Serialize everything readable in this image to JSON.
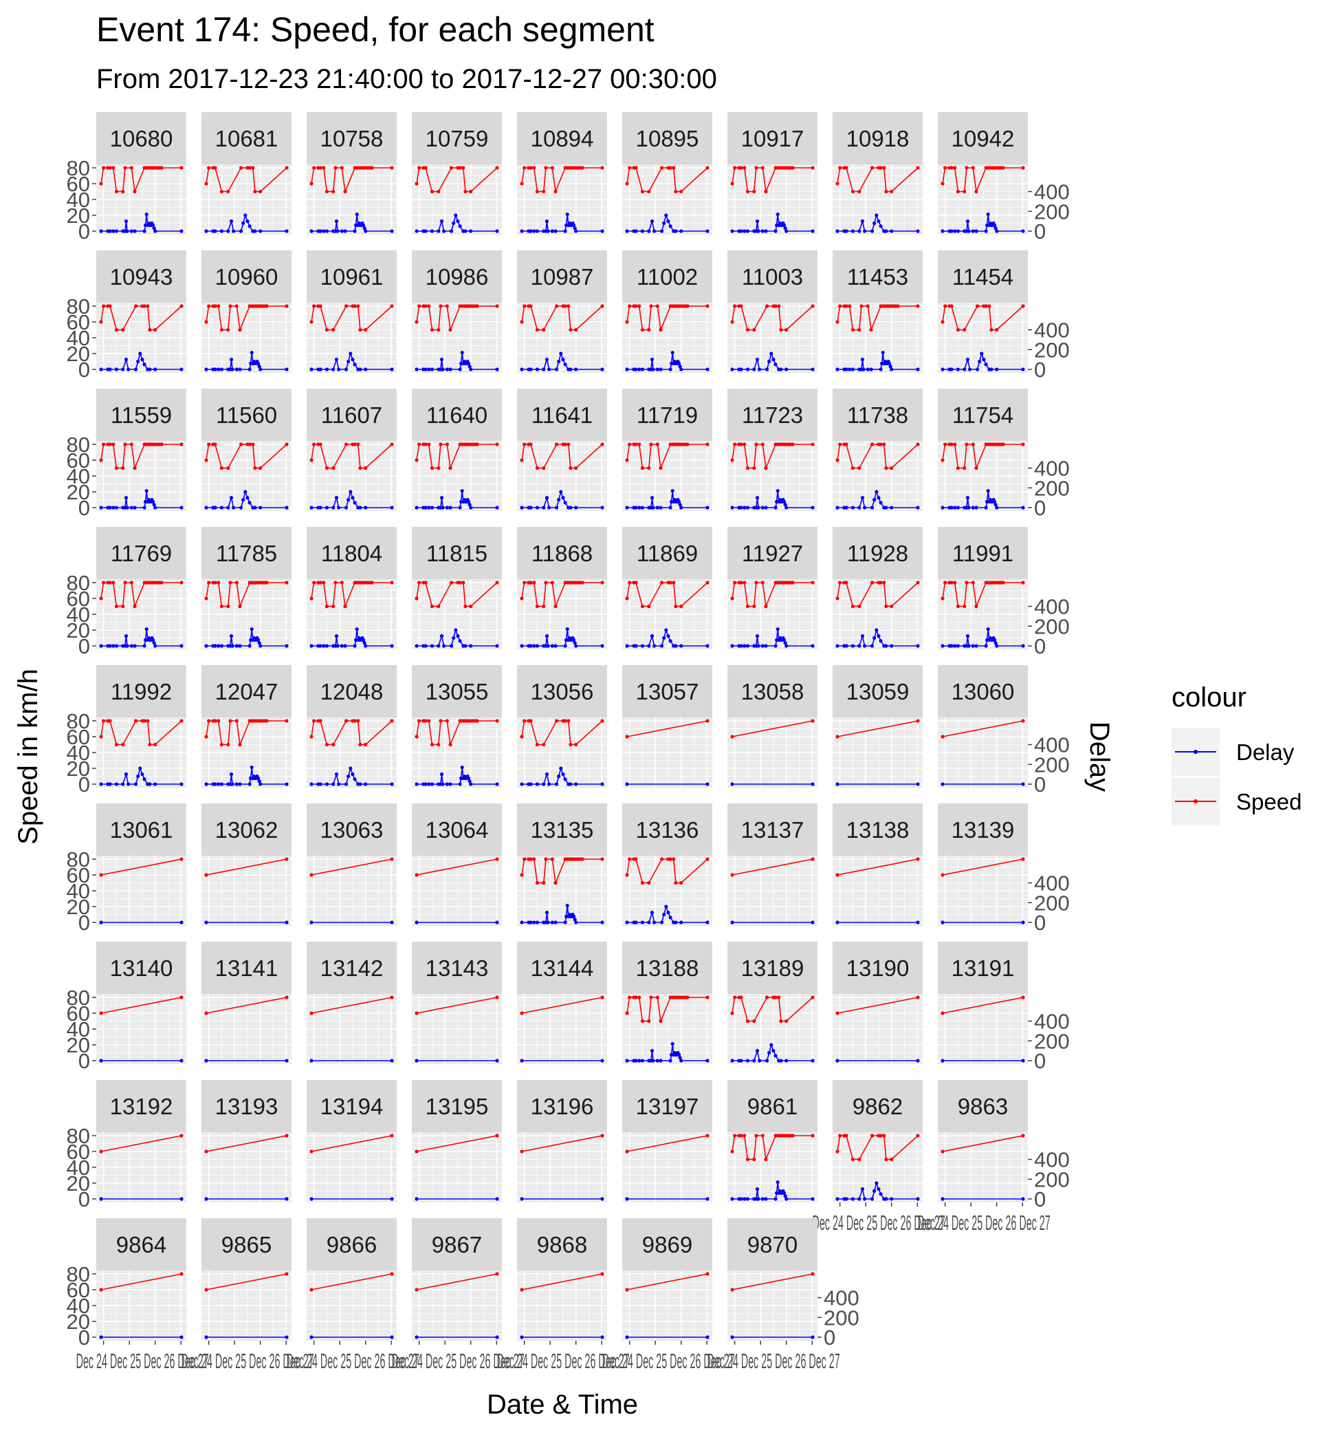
{
  "chart_data": {
    "type": "line",
    "facet": "small-multiples",
    "title": "Event 174: Speed, for each segment",
    "subtitle": "From 2017-12-23 21:40:00 to 2017-12-27 00:30:00",
    "xlabel": "Date & Time",
    "ylabel": "Speed in km/h",
    "y2label": "Delay",
    "legend": {
      "title": "colour",
      "placement": "right",
      "entries": [
        {
          "name": "Delay",
          "color": "#0000ff"
        },
        {
          "name": "Speed",
          "color": "#ff0000"
        }
      ]
    },
    "colors": {
      "Delay": "#0000ff",
      "Speed": "#ff0000",
      "panel_bg": "#ebebeb",
      "strip_bg": "#d9d9d9",
      "grid": "#ffffff"
    },
    "grid": true,
    "ylim": [
      0,
      80
    ],
    "y_ticks": [
      "0",
      "20",
      "40",
      "60",
      "80"
    ],
    "y2lim": [
      0,
      640
    ],
    "y2_ticks": [
      "0",
      "200",
      "400"
    ],
    "x_ticks": [
      "Dec 24",
      "Dec 25",
      "Dec 26",
      "Dec 27"
    ],
    "x_tick_text_shown": "Dec 24 Dec 25 Dec 26 Dec 27",
    "xlim": [
      "2017-12-23 21:40:00",
      "2017-12-27 00:30:00"
    ],
    "profiles": {
      "A": {
        "speed": [
          {
            "x": "2017-12-23 21:40:00",
            "y": 60
          },
          {
            "x": "2017-12-24 00:00:00",
            "y": 80
          },
          {
            "x": "2017-12-24 04:00:00",
            "y": 80
          },
          {
            "x": "2017-12-24 06:00:00",
            "y": 80
          },
          {
            "x": "2017-12-24 09:00:00",
            "y": 80
          },
          {
            "x": "2017-12-24 12:00:00",
            "y": 50
          },
          {
            "x": "2017-12-24 18:00:00",
            "y": 50
          },
          {
            "x": "2017-12-24 20:00:00",
            "y": 80
          },
          {
            "x": "2017-12-25 02:00:00",
            "y": 80
          },
          {
            "x": "2017-12-25 05:00:00",
            "y": 50
          },
          {
            "x": "2017-12-25 14:00:00",
            "y": 80
          },
          {
            "x": "2017-12-25 16:00:00",
            "y": 80
          },
          {
            "x": "2017-12-25 18:00:00",
            "y": 80
          },
          {
            "x": "2017-12-25 20:00:00",
            "y": 80
          },
          {
            "x": "2017-12-25 22:00:00",
            "y": 80
          },
          {
            "x": "2017-12-26 00:00:00",
            "y": 80
          },
          {
            "x": "2017-12-26 02:00:00",
            "y": 80
          },
          {
            "x": "2017-12-26 04:00:00",
            "y": 80
          },
          {
            "x": "2017-12-26 06:00:00",
            "y": 80
          },
          {
            "x": "2017-12-27 00:30:00",
            "y": 80
          }
        ],
        "delay": [
          {
            "x": "2017-12-23 21:40:00",
            "y": 0
          },
          {
            "x": "2017-12-24 04:00:00",
            "y": 0
          },
          {
            "x": "2017-12-24 06:00:00",
            "y": 0
          },
          {
            "x": "2017-12-24 09:00:00",
            "y": 0
          },
          {
            "x": "2017-12-24 12:00:00",
            "y": 0
          },
          {
            "x": "2017-12-24 18:00:00",
            "y": 0
          },
          {
            "x": "2017-12-24 20:00:00",
            "y": 0
          },
          {
            "x": "2017-12-24 21:00:00",
            "y": 100
          },
          {
            "x": "2017-12-24 22:00:00",
            "y": 0
          },
          {
            "x": "2017-12-25 02:00:00",
            "y": 0
          },
          {
            "x": "2017-12-25 05:00:00",
            "y": 0
          },
          {
            "x": "2017-12-25 14:00:00",
            "y": 0
          },
          {
            "x": "2017-12-25 15:00:00",
            "y": 60
          },
          {
            "x": "2017-12-25 16:00:00",
            "y": 170
          },
          {
            "x": "2017-12-25 17:00:00",
            "y": 60
          },
          {
            "x": "2017-12-25 18:00:00",
            "y": 80
          },
          {
            "x": "2017-12-25 19:00:00",
            "y": 60
          },
          {
            "x": "2017-12-25 20:00:00",
            "y": 60
          },
          {
            "x": "2017-12-25 21:00:00",
            "y": 80
          },
          {
            "x": "2017-12-25 22:00:00",
            "y": 60
          },
          {
            "x": "2017-12-25 23:00:00",
            "y": 30
          },
          {
            "x": "2017-12-26 00:00:00",
            "y": 0
          },
          {
            "x": "2017-12-27 00:30:00",
            "y": 0
          }
        ]
      },
      "B": {
        "speed": [
          {
            "x": "2017-12-23 21:40:00",
            "y": 60
          },
          {
            "x": "2017-12-24 00:00:00",
            "y": 80
          },
          {
            "x": "2017-12-24 04:00:00",
            "y": 80
          },
          {
            "x": "2017-12-24 06:00:00",
            "y": 80
          },
          {
            "x": "2017-12-24 12:00:00",
            "y": 50
          },
          {
            "x": "2017-12-24 18:00:00",
            "y": 50
          },
          {
            "x": "2017-12-25 06:00:00",
            "y": 80
          },
          {
            "x": "2017-12-25 12:00:00",
            "y": 80
          },
          {
            "x": "2017-12-25 14:00:00",
            "y": 80
          },
          {
            "x": "2017-12-25 17:00:00",
            "y": 80
          },
          {
            "x": "2017-12-25 19:00:00",
            "y": 50
          },
          {
            "x": "2017-12-26 00:00:00",
            "y": 50
          },
          {
            "x": "2017-12-27 00:30:00",
            "y": 80
          }
        ],
        "delay": [
          {
            "x": "2017-12-23 21:40:00",
            "y": 0
          },
          {
            "x": "2017-12-24 04:00:00",
            "y": 0
          },
          {
            "x": "2017-12-24 06:00:00",
            "y": 0
          },
          {
            "x": "2017-12-24 12:00:00",
            "y": 0
          },
          {
            "x": "2017-12-24 18:00:00",
            "y": 0
          },
          {
            "x": "2017-12-24 21:00:00",
            "y": 100
          },
          {
            "x": "2017-12-24 23:00:00",
            "y": 0
          },
          {
            "x": "2017-12-25 06:00:00",
            "y": 0
          },
          {
            "x": "2017-12-25 08:00:00",
            "y": 80
          },
          {
            "x": "2017-12-25 10:00:00",
            "y": 160
          },
          {
            "x": "2017-12-25 12:00:00",
            "y": 100
          },
          {
            "x": "2017-12-25 14:00:00",
            "y": 50
          },
          {
            "x": "2017-12-25 17:00:00",
            "y": 0
          },
          {
            "x": "2017-12-25 19:00:00",
            "y": 0
          },
          {
            "x": "2017-12-26 00:00:00",
            "y": 0
          },
          {
            "x": "2017-12-27 00:30:00",
            "y": 0
          }
        ]
      },
      "C": {
        "speed": [
          {
            "x": "2017-12-23 21:40:00",
            "y": 60
          },
          {
            "x": "2017-12-27 00:30:00",
            "y": 80
          }
        ],
        "delay": [
          {
            "x": "2017-12-23 21:40:00",
            "y": 0
          },
          {
            "x": "2017-12-27 00:30:00",
            "y": 0
          }
        ]
      }
    },
    "panels": [
      {
        "id": "10680",
        "profile": "A"
      },
      {
        "id": "10681",
        "profile": "B"
      },
      {
        "id": "10758",
        "profile": "A"
      },
      {
        "id": "10759",
        "profile": "B"
      },
      {
        "id": "10894",
        "profile": "A"
      },
      {
        "id": "10895",
        "profile": "B"
      },
      {
        "id": "10917",
        "profile": "A"
      },
      {
        "id": "10918",
        "profile": "B"
      },
      {
        "id": "10942",
        "profile": "A"
      },
      {
        "id": "10943",
        "profile": "B"
      },
      {
        "id": "10960",
        "profile": "A"
      },
      {
        "id": "10961",
        "profile": "B"
      },
      {
        "id": "10986",
        "profile": "A"
      },
      {
        "id": "10987",
        "profile": "B"
      },
      {
        "id": "11002",
        "profile": "A"
      },
      {
        "id": "11003",
        "profile": "B"
      },
      {
        "id": "11453",
        "profile": "A"
      },
      {
        "id": "11454",
        "profile": "B"
      },
      {
        "id": "11559",
        "profile": "A"
      },
      {
        "id": "11560",
        "profile": "B"
      },
      {
        "id": "11607",
        "profile": "B"
      },
      {
        "id": "11640",
        "profile": "A"
      },
      {
        "id": "11641",
        "profile": "B"
      },
      {
        "id": "11719",
        "profile": "A"
      },
      {
        "id": "11723",
        "profile": "A"
      },
      {
        "id": "11738",
        "profile": "B"
      },
      {
        "id": "11754",
        "profile": "A"
      },
      {
        "id": "11769",
        "profile": "A"
      },
      {
        "id": "11785",
        "profile": "A"
      },
      {
        "id": "11804",
        "profile": "A"
      },
      {
        "id": "11815",
        "profile": "B"
      },
      {
        "id": "11868",
        "profile": "A"
      },
      {
        "id": "11869",
        "profile": "B"
      },
      {
        "id": "11927",
        "profile": "A"
      },
      {
        "id": "11928",
        "profile": "B"
      },
      {
        "id": "11991",
        "profile": "A"
      },
      {
        "id": "11992",
        "profile": "B"
      },
      {
        "id": "12047",
        "profile": "A"
      },
      {
        "id": "12048",
        "profile": "B"
      },
      {
        "id": "13055",
        "profile": "A"
      },
      {
        "id": "13056",
        "profile": "B"
      },
      {
        "id": "13057",
        "profile": "C"
      },
      {
        "id": "13058",
        "profile": "C"
      },
      {
        "id": "13059",
        "profile": "C"
      },
      {
        "id": "13060",
        "profile": "C"
      },
      {
        "id": "13061",
        "profile": "C"
      },
      {
        "id": "13062",
        "profile": "C"
      },
      {
        "id": "13063",
        "profile": "C"
      },
      {
        "id": "13064",
        "profile": "C"
      },
      {
        "id": "13135",
        "profile": "A"
      },
      {
        "id": "13136",
        "profile": "B"
      },
      {
        "id": "13137",
        "profile": "C"
      },
      {
        "id": "13138",
        "profile": "C"
      },
      {
        "id": "13139",
        "profile": "C"
      },
      {
        "id": "13140",
        "profile": "C"
      },
      {
        "id": "13141",
        "profile": "C"
      },
      {
        "id": "13142",
        "profile": "C"
      },
      {
        "id": "13143",
        "profile": "C"
      },
      {
        "id": "13144",
        "profile": "C"
      },
      {
        "id": "13188",
        "profile": "A"
      },
      {
        "id": "13189",
        "profile": "B"
      },
      {
        "id": "13190",
        "profile": "C"
      },
      {
        "id": "13191",
        "profile": "C"
      },
      {
        "id": "13192",
        "profile": "C"
      },
      {
        "id": "13193",
        "profile": "C"
      },
      {
        "id": "13194",
        "profile": "C"
      },
      {
        "id": "13195",
        "profile": "C"
      },
      {
        "id": "13196",
        "profile": "C"
      },
      {
        "id": "13197",
        "profile": "C"
      },
      {
        "id": "9861",
        "profile": "A"
      },
      {
        "id": "9862",
        "profile": "B"
      },
      {
        "id": "9863",
        "profile": "C"
      },
      {
        "id": "9864",
        "profile": "C"
      },
      {
        "id": "9865",
        "profile": "C"
      },
      {
        "id": "9866",
        "profile": "C"
      },
      {
        "id": "9867",
        "profile": "C"
      },
      {
        "id": "9868",
        "profile": "C"
      },
      {
        "id": "9869",
        "profile": "C"
      },
      {
        "id": "9870",
        "profile": "C"
      }
    ]
  }
}
